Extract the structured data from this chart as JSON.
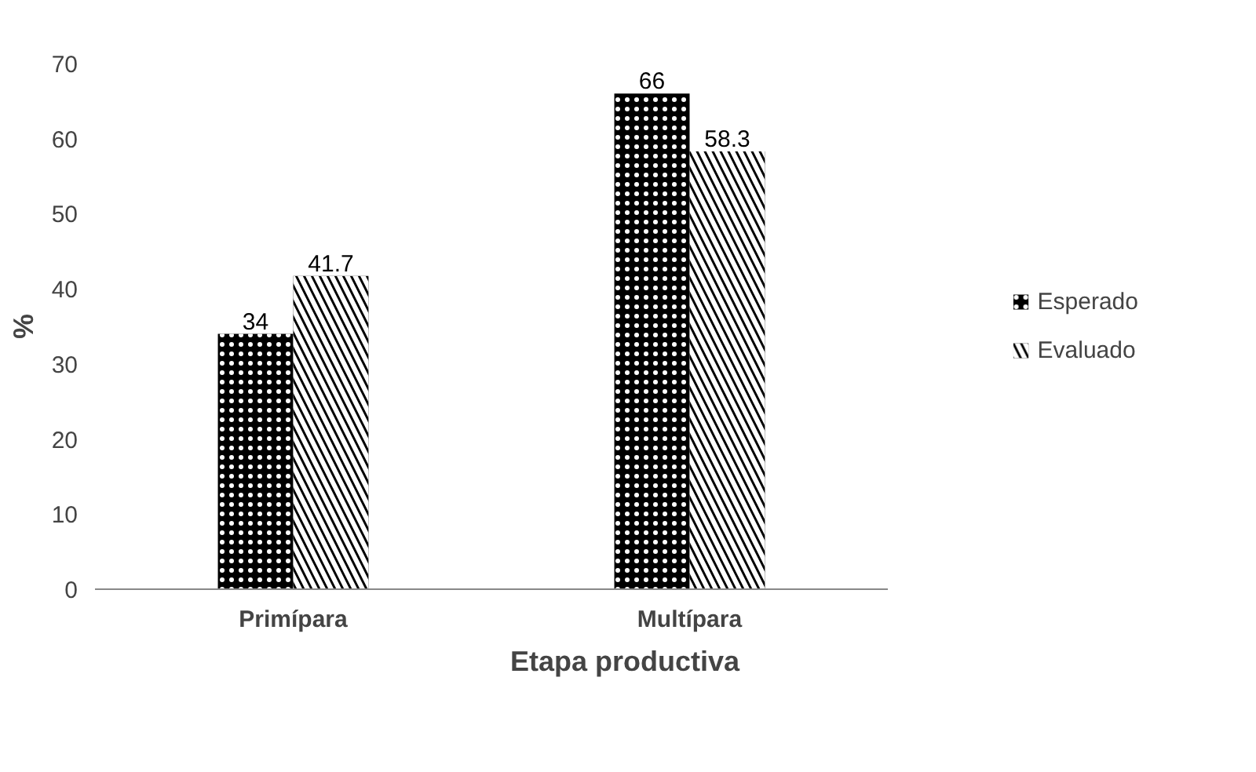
{
  "chart_data": {
    "type": "bar",
    "xlabel": "Etapa productiva",
    "ylabel": "%",
    "categories": [
      "Primípara",
      "Multípara"
    ],
    "series": [
      {
        "name": "Esperado",
        "color": "#000000",
        "values": [
          34,
          66
        ]
      },
      {
        "name": "Evaluado",
        "color": "#000000",
        "values": [
          41.7,
          58.3
        ]
      }
    ],
    "ylim": [
      0,
      70
    ],
    "yticks": [
      0,
      10,
      20,
      30,
      40,
      50,
      60,
      70
    ],
    "grid": false,
    "legend": "right",
    "data_labels": true
  }
}
